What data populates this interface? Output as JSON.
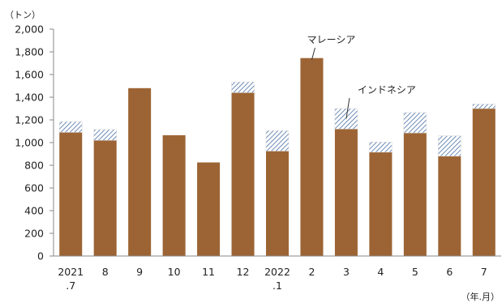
{
  "chart_data": {
    "type": "bar",
    "stacked": true,
    "y_unit_label": "（トン）",
    "x_unit_label": "（年.月）",
    "categories": [
      "2021\n.7",
      "8",
      "9",
      "10",
      "11",
      "12",
      "2022\n.1",
      "2",
      "3",
      "4",
      "5",
      "6",
      "7"
    ],
    "ylim": [
      0,
      2000
    ],
    "ytick_step": 200,
    "yticks": [
      "0",
      "200",
      "400",
      "600",
      "800",
      "1,000",
      "1,200",
      "1,400",
      "1,600",
      "1,800",
      "2,000"
    ],
    "grid": false,
    "legend": "none",
    "series": [
      {
        "name": "マレーシア",
        "color": "#9c6434",
        "pattern": "solid",
        "values": [
          1090,
          1020,
          1480,
          1065,
          825,
          1440,
          925,
          1745,
          1120,
          915,
          1085,
          880,
          1300
        ]
      },
      {
        "name": "インドネシア",
        "color": "#4a6fa5",
        "pattern": "hatch",
        "values": [
          95,
          95,
          0,
          0,
          0,
          95,
          180,
          0,
          180,
          90,
          180,
          180,
          40
        ]
      }
    ],
    "annotations": [
      {
        "text": "マレーシア",
        "series": 0,
        "category": 7
      },
      {
        "text": "インドネシア",
        "series": 1,
        "category": 8
      }
    ]
  }
}
